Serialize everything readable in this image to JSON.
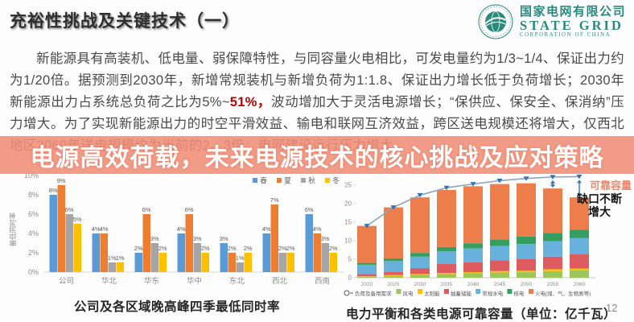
{
  "slide": {
    "title": "充裕性挑战及关键技术（一）",
    "page_number": "12",
    "logo": {
      "name_cn": "国家电网有限公司",
      "name_en": "STATE GRID",
      "sub_en": "CORPORATION OF CHINA",
      "color": "#2a8a7d"
    },
    "body": {
      "seg1": "新能源具有高装机、低电量、弱保障特性，与同容量火电相比，可发电量约为1/3~1/4、保证出力约为1/20倍。据预测到2030年，新增常规装机与新增负荷为1:1.8、保证出力增长低于负荷增长；2030年新能源出力占系统总负荷之比为5%~",
      "highlight": "51%，",
      "highlight_color": "#C00000",
      "seg2": "波动增加大于灵活电源增长；“保供应、保安全、保消纳”压力增大。为了实现新能源出力的时空平滑效益、输电和联网互济效益，跨区送电规模还将增大，仅西北地区2060年送电规模约为当前的2、3倍；电网建设运行压力增大。"
    },
    "banner": {
      "text": "电源高效荷载，未来电源技术的核心挑战及应对策略",
      "bg": "#f08e76",
      "text_color": "#ffffff"
    }
  },
  "chart_data": [
    {
      "type": "bar",
      "title": "公司及各区域晚高峰四季最低同时率",
      "ylabel": "最低同时率",
      "unit": "%",
      "ylim": [
        0,
        10
      ],
      "ticks": [
        0,
        2,
        4,
        6,
        8,
        10
      ],
      "grid": false,
      "legend_position": "top-right",
      "categories": [
        "公司",
        "华北",
        "华东",
        "华中",
        "东北",
        "西北",
        "西南"
      ],
      "series": [
        {
          "name": "春",
          "color": "#5B9BD5",
          "values": [
            8,
            4,
            2,
            4,
            3,
            4,
            6
          ]
        },
        {
          "name": "夏",
          "color": "#ED7D31",
          "values": [
            9,
            4,
            6,
            6,
            2,
            7,
            4
          ]
        },
        {
          "name": "秋",
          "color": "#A5A5A5",
          "values": [
            6,
            1,
            3,
            3,
            1,
            2,
            3
          ]
        },
        {
          "name": "冬",
          "color": "#FFC000",
          "values": [
            5,
            1,
            2,
            2,
            2,
            2,
            2
          ]
        }
      ]
    },
    {
      "type": "stacked-bar-line",
      "title": "电力平衡和各类电源可靠容量（单位：亿千瓦）",
      "ylim": [
        0,
        28
      ],
      "ticks": [
        0,
        5,
        10,
        15,
        20,
        25
      ],
      "grid": false,
      "categories": [
        "2020",
        "2025",
        "2030",
        "2035",
        "2040",
        "2045",
        "2050",
        "2055",
        "2060"
      ],
      "line_series": {
        "name": "负荷及备用需求",
        "color": "#8da3bc",
        "marker_color": "#2E75B6",
        "values": [
          14,
          19,
          22.3,
          24.3,
          25.3,
          26.2,
          26.8,
          27.2,
          27.3
        ]
      },
      "stack_series": [
        {
          "name": "风电",
          "color": "#9CC65A",
          "values": [
            0.3,
            0.5,
            0.8,
            1.0,
            1.2,
            1.4,
            1.5,
            1.8,
            2.0
          ]
        },
        {
          "name": "太阳能",
          "color": "#FFC000",
          "values": [
            0.1,
            0.2,
            0.2,
            0.3,
            0.3,
            0.4,
            0.4,
            0.5,
            0.5
          ]
        },
        {
          "name": "抽蓄储能",
          "color": "#DE5B5F",
          "values": [
            0.6,
            0.9,
            1.6,
            2.4,
            2.7,
            2.9,
            3.1,
            3.4,
            3.8
          ]
        },
        {
          "name": "常规水电",
          "color": "#67B1DC",
          "values": [
            2.5,
            2.9,
            3.1,
            3.4,
            3.7,
            3.9,
            4.1,
            4.2,
            4.4
          ]
        },
        {
          "name": "核电",
          "color": "#339E60",
          "values": [
            0.5,
            0.7,
            1.0,
            1.2,
            1.4,
            1.7,
            2.0,
            2.2,
            2.3
          ]
        },
        {
          "name": "火电(煤、气、生物质等)",
          "color": "#ED7D4B",
          "values": [
            10.0,
            13.8,
            15.0,
            15.4,
            15.4,
            15.0,
            14.4,
            12.0,
            8.7
          ]
        }
      ],
      "annotations": {
        "line_label": "可靠容量",
        "gap_label": "缺口不断增大"
      }
    }
  ]
}
